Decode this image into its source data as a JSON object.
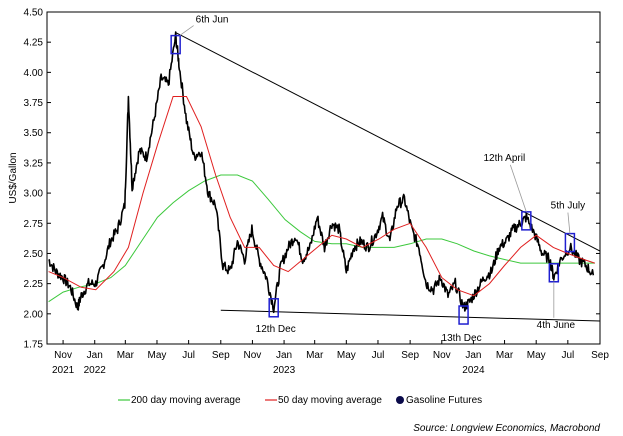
{
  "chart_data": {
    "type": "line",
    "ylabel": "US$/Gallon",
    "ylim": [
      1.75,
      4.5
    ],
    "yticks": [
      "4.50",
      "4.25",
      "4.00",
      "3.75",
      "3.50",
      "3.25",
      "3.00",
      "2.75",
      "2.50",
      "2.25",
      "2.00",
      "1.75"
    ],
    "xlim": [
      "2021-10-01",
      "2024-09-01"
    ],
    "xticks": [
      "Nov",
      "Jan",
      "Mar",
      "May",
      "Jul",
      "Sep",
      "Nov",
      "Jan",
      "Mar",
      "May",
      "Jul",
      "Sep",
      "Nov",
      "Jan",
      "Mar",
      "May",
      "Jul",
      "Sep"
    ],
    "years": [
      "2021",
      "2022",
      "2023",
      "2024"
    ],
    "colors": {
      "futures": "#000000",
      "ma50": "#e02020",
      "ma200": "#3cc83c",
      "boxes": "#1f1fd0",
      "trend": "#000000"
    },
    "series": [
      {
        "name": "Gasoline Futures",
        "x": [
          "2021-10-04",
          "2021-10-18",
          "2021-11-01",
          "2021-11-15",
          "2021-11-29",
          "2021-12-06",
          "2021-12-20",
          "2022-01-03",
          "2022-01-17",
          "2022-01-31",
          "2022-02-14",
          "2022-02-28",
          "2022-03-07",
          "2022-03-14",
          "2022-03-28",
          "2022-04-11",
          "2022-04-25",
          "2022-05-09",
          "2022-05-23",
          "2022-06-06",
          "2022-06-13",
          "2022-06-27",
          "2022-07-11",
          "2022-07-25",
          "2022-08-08",
          "2022-08-22",
          "2022-09-05",
          "2022-09-19",
          "2022-10-03",
          "2022-10-17",
          "2022-10-31",
          "2022-11-14",
          "2022-11-28",
          "2022-12-12",
          "2022-12-26",
          "2023-01-09",
          "2023-01-23",
          "2023-02-06",
          "2023-02-20",
          "2023-03-06",
          "2023-03-20",
          "2023-04-03",
          "2023-04-17",
          "2023-05-01",
          "2023-05-15",
          "2023-05-29",
          "2023-06-12",
          "2023-06-26",
          "2023-07-10",
          "2023-07-24",
          "2023-08-07",
          "2023-08-21",
          "2023-09-04",
          "2023-09-18",
          "2023-10-02",
          "2023-10-16",
          "2023-10-30",
          "2023-11-13",
          "2023-11-27",
          "2023-12-13",
          "2023-12-25",
          "2024-01-08",
          "2024-01-22",
          "2024-02-05",
          "2024-02-19",
          "2024-03-04",
          "2024-03-18",
          "2024-04-01",
          "2024-04-12",
          "2024-04-29",
          "2024-05-13",
          "2024-05-27",
          "2024-06-04",
          "2024-06-17",
          "2024-07-05",
          "2024-07-22",
          "2024-08-05",
          "2024-08-19"
        ],
        "values": [
          2.45,
          2.35,
          2.3,
          2.22,
          2.05,
          2.15,
          2.25,
          2.25,
          2.4,
          2.6,
          2.7,
          2.9,
          3.8,
          3.05,
          3.35,
          3.3,
          3.6,
          3.95,
          3.9,
          4.3,
          4.05,
          3.6,
          3.3,
          3.35,
          3.0,
          2.9,
          2.4,
          2.35,
          2.6,
          2.45,
          2.7,
          2.45,
          2.3,
          2.05,
          2.4,
          2.55,
          2.65,
          2.45,
          2.55,
          2.8,
          2.55,
          2.75,
          2.7,
          2.35,
          2.55,
          2.6,
          2.55,
          2.65,
          2.8,
          2.6,
          2.9,
          2.95,
          2.7,
          2.55,
          2.25,
          2.2,
          2.3,
          2.15,
          2.25,
          2.05,
          2.1,
          2.2,
          2.3,
          2.35,
          2.55,
          2.6,
          2.7,
          2.75,
          2.8,
          2.65,
          2.5,
          2.45,
          2.3,
          2.45,
          2.55,
          2.45,
          2.4,
          2.32
        ]
      },
      {
        "name": "50 day moving average",
        "x": [
          "2021-10-04",
          "2021-11-01",
          "2021-12-06",
          "2022-01-03",
          "2022-02-07",
          "2022-03-07",
          "2022-04-04",
          "2022-05-02",
          "2022-06-01",
          "2022-06-27",
          "2022-07-25",
          "2022-08-22",
          "2022-09-19",
          "2022-10-17",
          "2022-11-14",
          "2022-12-12",
          "2023-01-09",
          "2023-02-06",
          "2023-03-06",
          "2023-04-03",
          "2023-05-01",
          "2023-06-01",
          "2023-07-03",
          "2023-08-01",
          "2023-09-01",
          "2023-10-02",
          "2023-11-01",
          "2023-12-01",
          "2024-01-02",
          "2024-02-01",
          "2024-03-01",
          "2024-04-01",
          "2024-05-01",
          "2024-06-03",
          "2024-07-01",
          "2024-08-01",
          "2024-08-22"
        ],
        "values": [
          2.35,
          2.3,
          2.22,
          2.2,
          2.35,
          2.55,
          3.0,
          3.4,
          3.8,
          3.8,
          3.55,
          3.15,
          2.8,
          2.55,
          2.55,
          2.4,
          2.35,
          2.45,
          2.55,
          2.65,
          2.62,
          2.55,
          2.62,
          2.7,
          2.75,
          2.55,
          2.3,
          2.2,
          2.15,
          2.25,
          2.4,
          2.55,
          2.65,
          2.55,
          2.5,
          2.45,
          2.42
        ]
      },
      {
        "name": "200 day moving average",
        "x": [
          "2021-10-04",
          "2021-11-01",
          "2021-12-01",
          "2022-01-03",
          "2022-02-01",
          "2022-03-01",
          "2022-04-01",
          "2022-05-02",
          "2022-06-01",
          "2022-07-01",
          "2022-08-01",
          "2022-09-01",
          "2022-10-03",
          "2022-11-01",
          "2022-12-01",
          "2023-01-03",
          "2023-02-01",
          "2023-03-01",
          "2023-04-03",
          "2023-05-01",
          "2023-06-01",
          "2023-07-03",
          "2023-08-01",
          "2023-09-01",
          "2023-10-02",
          "2023-11-01",
          "2023-12-01",
          "2024-01-02",
          "2024-02-01",
          "2024-03-01",
          "2024-04-01",
          "2024-05-01",
          "2024-06-03",
          "2024-07-01",
          "2024-08-01",
          "2024-08-22"
        ],
        "values": [
          2.1,
          2.18,
          2.22,
          2.25,
          2.3,
          2.4,
          2.6,
          2.8,
          2.92,
          3.02,
          3.1,
          3.15,
          3.15,
          3.1,
          2.95,
          2.78,
          2.68,
          2.6,
          2.58,
          2.58,
          2.55,
          2.55,
          2.55,
          2.58,
          2.62,
          2.62,
          2.58,
          2.52,
          2.48,
          2.45,
          2.42,
          2.42,
          2.42,
          2.42,
          2.42,
          2.42
        ]
      }
    ],
    "trendlines": [
      {
        "from": [
          "2022-06-06",
          4.33
        ],
        "to": [
          "2024-09-01",
          2.52
        ]
      },
      {
        "from": [
          "2022-09-01",
          2.03
        ],
        "to": [
          "2024-09-01",
          1.94
        ]
      }
    ],
    "markers": [
      {
        "date": "2022-06-06",
        "value": 4.23,
        "label": "6th Jun"
      },
      {
        "date": "2022-12-12",
        "value": 2.05,
        "label": "12th Dec"
      },
      {
        "date": "2023-12-13",
        "value": 1.99,
        "label": "13th Dec"
      },
      {
        "date": "2024-04-12",
        "value": 2.77,
        "label": "12th April"
      },
      {
        "date": "2024-06-04",
        "value": 2.34,
        "label": "4th June"
      },
      {
        "date": "2024-07-05",
        "value": 2.59,
        "label": "5th July"
      }
    ],
    "legend": {
      "position": "bottom",
      "items": [
        "200 day moving average",
        "50 day moving average",
        "Gasoline Futures"
      ]
    },
    "source": "Source: Longview Economics, Macrobond"
  }
}
